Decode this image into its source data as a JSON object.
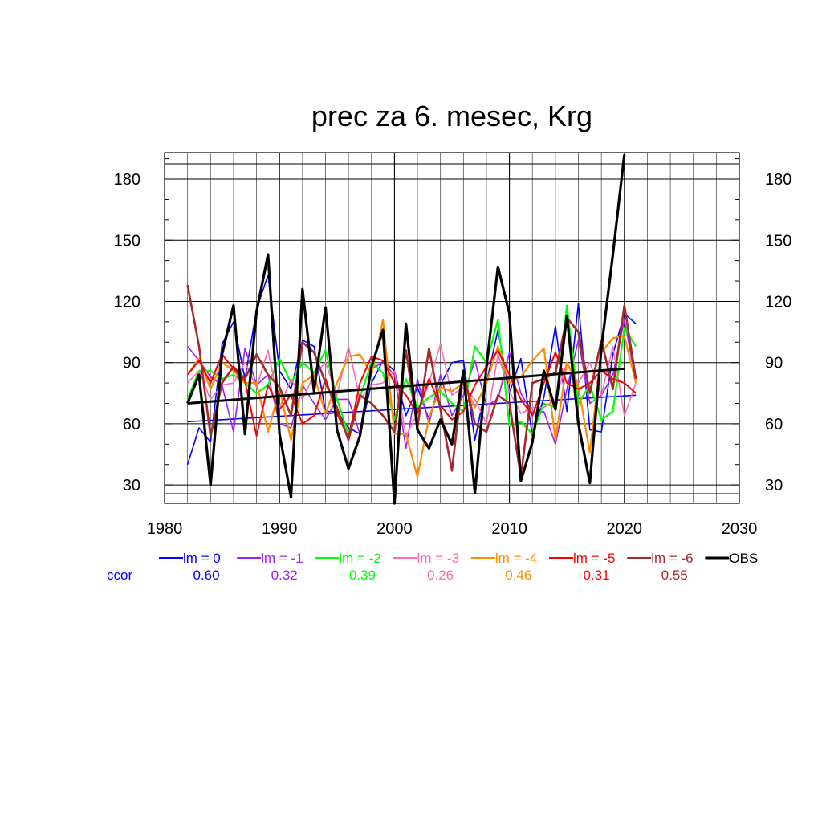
{
  "chart_data": {
    "type": "line",
    "title": "prec za 6. mesec, Krg",
    "xlabel": "",
    "ylabel": "",
    "xlim": [
      1980,
      2030
    ],
    "ylim": [
      21,
      193
    ],
    "x_ticks": [
      1980,
      1990,
      2000,
      2010,
      2020,
      2030
    ],
    "y_ticks": [
      30,
      60,
      90,
      120,
      150,
      180
    ],
    "grid": true,
    "legend_position": "bottom",
    "ccor_label": "ccor",
    "years": [
      1982,
      1983,
      1984,
      1985,
      1986,
      1987,
      1988,
      1989,
      1990,
      1991,
      1992,
      1993,
      1994,
      1995,
      1996,
      1997,
      1998,
      1999,
      2000,
      2001,
      2002,
      2003,
      2004,
      2005,
      2006,
      2007,
      2008,
      2009,
      2010,
      2011,
      2012,
      2013,
      2014,
      2015,
      2016,
      2017,
      2018,
      2019,
      2020,
      2021
    ],
    "series": [
      {
        "name": "lm = 0",
        "color": "#0000ff",
        "width": 1.6,
        "ccor": "0.60",
        "values": [
          40,
          58,
          51,
          99,
          110,
          82,
          116,
          133,
          86,
          77,
          101,
          98,
          66,
          66,
          58,
          55,
          80,
          91,
          86,
          64,
          78,
          62,
          79,
          90,
          91,
          52,
          80,
          106,
          75,
          92,
          54,
          73,
          108,
          66,
          119,
          57,
          56,
          94,
          114,
          109
        ],
        "trend": [
          61,
          74
        ]
      },
      {
        "name": "lm = -1",
        "color": "#a020f0",
        "width": 1.6,
        "ccor": "0.32",
        "values": [
          98,
          91,
          83,
          79,
          56,
          97,
          79,
          84,
          60,
          58,
          79,
          70,
          62,
          72,
          72,
          55,
          87,
          90,
          84,
          48,
          82,
          60,
          84,
          64,
          74,
          91,
          69,
          72,
          95,
          75,
          65,
          66,
          50,
          77,
          101,
          70,
          74,
          84,
          111,
          81
        ]
      },
      {
        "name": "lm = -2",
        "color": "#00ff00",
        "width": 2.2,
        "ccor": "0.39",
        "values": [
          72,
          86,
          86,
          82,
          84,
          80,
          75,
          79,
          92,
          80,
          90,
          85,
          96,
          72,
          55,
          73,
          90,
          85,
          62,
          82,
          68,
          73,
          76,
          70,
          66,
          98,
          90,
          111,
          59,
          61,
          55,
          70,
          68,
          118,
          70,
          79,
          62,
          66,
          107,
          98
        ]
      },
      {
        "name": "lm = -3",
        "color": "#ff69b4",
        "width": 1.6,
        "ccor": "0.26",
        "values": [
          80,
          86,
          72,
          79,
          80,
          90,
          78,
          96,
          68,
          82,
          72,
          84,
          90,
          74,
          98,
          72,
          79,
          80,
          86,
          54,
          65,
          80,
          99,
          74,
          78,
          72,
          60,
          94,
          76,
          65,
          68,
          68,
          72,
          90,
          80,
          90,
          74,
          98,
          64,
          80
        ]
      },
      {
        "name": "lm = -4",
        "color": "#ff8c00",
        "width": 2.2,
        "ccor": "0.46",
        "values": [
          84,
          92,
          77,
          90,
          86,
          80,
          80,
          56,
          77,
          52,
          80,
          84,
          65,
          80,
          93,
          94,
          84,
          111,
          55,
          55,
          34,
          63,
          78,
          76,
          80,
          68,
          80,
          98,
          80,
          83,
          91,
          97,
          52,
          90,
          78,
          46,
          95,
          102,
          103,
          80
        ]
      },
      {
        "name": "lm = -5",
        "color": "#ff0000",
        "width": 2.0,
        "ccor": "0.31",
        "values": [
          84,
          91,
          80,
          94,
          87,
          81,
          54,
          79,
          67,
          74,
          60,
          64,
          82,
          65,
          53,
          80,
          93,
          91,
          80,
          74,
          65,
          82,
          69,
          62,
          66,
          79,
          88,
          96,
          84,
          72,
          64,
          80,
          95,
          80,
          77,
          80,
          86,
          82,
          80,
          75
        ]
      },
      {
        "name": "lm = -6",
        "color": "#a52a2a",
        "width": 2.6,
        "ccor": "0.55",
        "values": [
          128,
          98,
          54,
          80,
          88,
          82,
          94,
          84,
          78,
          64,
          100,
          95,
          80,
          68,
          52,
          74,
          70,
          64,
          56,
          96,
          58,
          97,
          67,
          37,
          86,
          60,
          56,
          74,
          70,
          34,
          80,
          82,
          85,
          112,
          105,
          75,
          101,
          77,
          118,
          82
        ]
      },
      {
        "name": "OBS",
        "color": "#000000",
        "width": 3.2,
        "ccor": "",
        "values": [
          70,
          84,
          30,
          94,
          118,
          55,
          115,
          143,
          55,
          24,
          126,
          76,
          117,
          57,
          38,
          54,
          88,
          106,
          21,
          109,
          57,
          48,
          62,
          50,
          86,
          26,
          88,
          137,
          114,
          32,
          51,
          86,
          67,
          113,
          60,
          31,
          97,
          143,
          192,
          null
        ],
        "trend": [
          70,
          87
        ]
      }
    ]
  }
}
